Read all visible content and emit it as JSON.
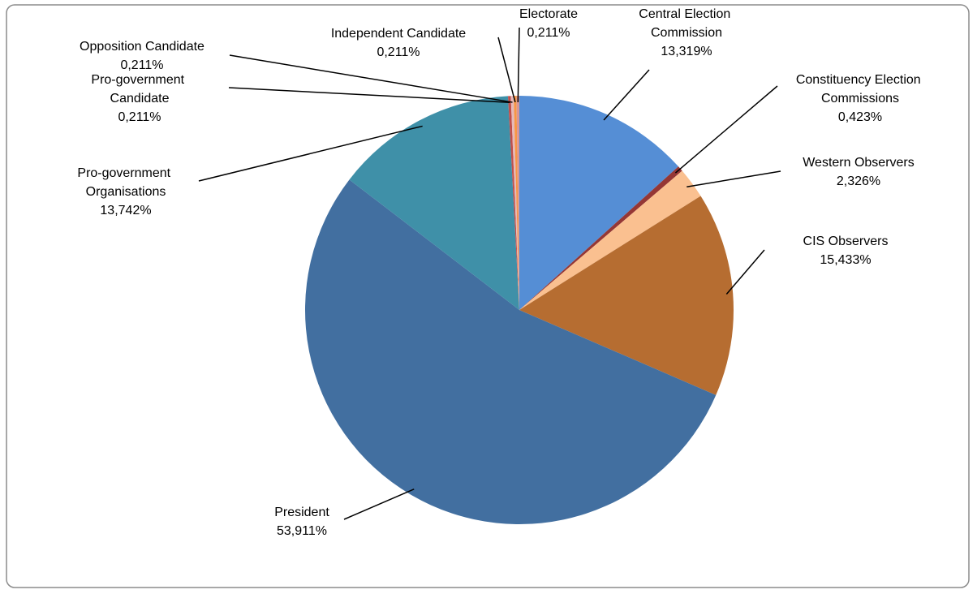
{
  "chart_data": {
    "type": "pie",
    "categories": [
      "Central Election Commission",
      "Constituency Election Commissions",
      "Western Observers",
      "CIS Observers",
      "President",
      "Pro-government Organisations",
      "Pro-government Candidate",
      "Opposition Candidate",
      "Independent Candidate",
      "Electorate"
    ],
    "values": [
      13.319,
      0.423,
      2.326,
      15.433,
      53.911,
      13.742,
      0.211,
      0.211,
      0.211,
      0.211
    ],
    "value_labels": [
      "13,319%",
      "0,423%",
      "2,326%",
      "15,433%",
      "53,911%",
      "13,742%",
      "0,211%",
      "0,211%",
      "0,211%",
      "0,211%"
    ],
    "colors": [
      "#558ed5",
      "#953735",
      "#fac090",
      "#b66d31",
      "#426fa0",
      "#3f90a8",
      "#c0504d",
      "#e6b9b8",
      "#f79646",
      "#d99694"
    ]
  }
}
